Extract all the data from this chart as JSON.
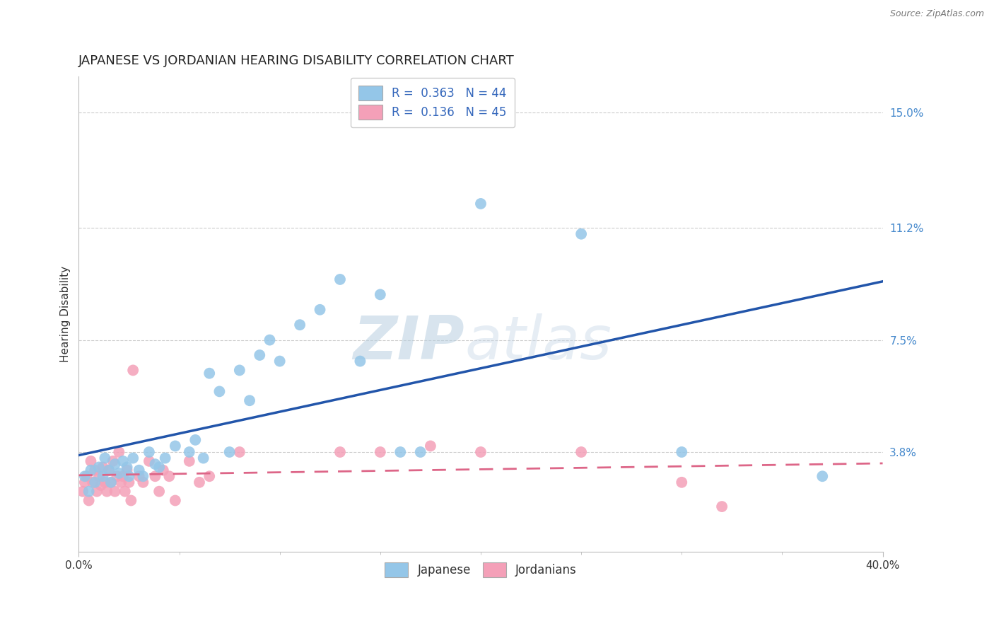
{
  "title": "JAPANESE VS JORDANIAN HEARING DISABILITY CORRELATION CHART",
  "source_text": "Source: ZipAtlas.com",
  "ylabel": "Hearing Disability",
  "x_min": 0.0,
  "x_max": 0.4,
  "y_min": 0.005,
  "y_max": 0.162,
  "y_ticks": [
    0.038,
    0.075,
    0.112,
    0.15
  ],
  "y_tick_labels": [
    "3.8%",
    "7.5%",
    "11.2%",
    "15.0%"
  ],
  "x_ticks": [
    0.0,
    0.4
  ],
  "x_tick_labels": [
    "0.0%",
    "40.0%"
  ],
  "japanese_color": "#94c6e8",
  "jordanian_color": "#f4a0b8",
  "japanese_line_color": "#2255aa",
  "jordanian_line_color": "#dd6688",
  "watermark_zip": "ZIP",
  "watermark_atlas": "atlas",
  "background_color": "#ffffff",
  "grid_color": "#cccccc",
  "japanese_points": [
    [
      0.003,
      0.03
    ],
    [
      0.005,
      0.025
    ],
    [
      0.006,
      0.032
    ],
    [
      0.008,
      0.028
    ],
    [
      0.01,
      0.033
    ],
    [
      0.012,
      0.03
    ],
    [
      0.013,
      0.036
    ],
    [
      0.015,
      0.032
    ],
    [
      0.016,
      0.028
    ],
    [
      0.018,
      0.034
    ],
    [
      0.02,
      0.031
    ],
    [
      0.022,
      0.035
    ],
    [
      0.024,
      0.033
    ],
    [
      0.025,
      0.03
    ],
    [
      0.027,
      0.036
    ],
    [
      0.03,
      0.032
    ],
    [
      0.032,
      0.03
    ],
    [
      0.035,
      0.038
    ],
    [
      0.038,
      0.034
    ],
    [
      0.04,
      0.033
    ],
    [
      0.043,
      0.036
    ],
    [
      0.048,
      0.04
    ],
    [
      0.055,
      0.038
    ],
    [
      0.058,
      0.042
    ],
    [
      0.062,
      0.036
    ],
    [
      0.065,
      0.064
    ],
    [
      0.07,
      0.058
    ],
    [
      0.075,
      0.038
    ],
    [
      0.08,
      0.065
    ],
    [
      0.085,
      0.055
    ],
    [
      0.09,
      0.07
    ],
    [
      0.095,
      0.075
    ],
    [
      0.1,
      0.068
    ],
    [
      0.11,
      0.08
    ],
    [
      0.12,
      0.085
    ],
    [
      0.13,
      0.095
    ],
    [
      0.14,
      0.068
    ],
    [
      0.15,
      0.09
    ],
    [
      0.16,
      0.038
    ],
    [
      0.17,
      0.038
    ],
    [
      0.2,
      0.12
    ],
    [
      0.25,
      0.11
    ],
    [
      0.3,
      0.038
    ],
    [
      0.37,
      0.03
    ]
  ],
  "jordanian_points": [
    [
      0.002,
      0.025
    ],
    [
      0.003,
      0.028
    ],
    [
      0.004,
      0.03
    ],
    [
      0.005,
      0.022
    ],
    [
      0.006,
      0.035
    ],
    [
      0.007,
      0.028
    ],
    [
      0.008,
      0.032
    ],
    [
      0.009,
      0.025
    ],
    [
      0.01,
      0.03
    ],
    [
      0.011,
      0.027
    ],
    [
      0.012,
      0.033
    ],
    [
      0.013,
      0.028
    ],
    [
      0.014,
      0.025
    ],
    [
      0.015,
      0.032
    ],
    [
      0.016,
      0.028
    ],
    [
      0.017,
      0.035
    ],
    [
      0.018,
      0.025
    ],
    [
      0.019,
      0.03
    ],
    [
      0.02,
      0.038
    ],
    [
      0.021,
      0.028
    ],
    [
      0.022,
      0.03
    ],
    [
      0.023,
      0.025
    ],
    [
      0.024,
      0.032
    ],
    [
      0.025,
      0.028
    ],
    [
      0.026,
      0.022
    ],
    [
      0.027,
      0.065
    ],
    [
      0.03,
      0.03
    ],
    [
      0.032,
      0.028
    ],
    [
      0.035,
      0.035
    ],
    [
      0.038,
      0.03
    ],
    [
      0.04,
      0.025
    ],
    [
      0.042,
      0.032
    ],
    [
      0.045,
      0.03
    ],
    [
      0.048,
      0.022
    ],
    [
      0.055,
      0.035
    ],
    [
      0.06,
      0.028
    ],
    [
      0.065,
      0.03
    ],
    [
      0.08,
      0.038
    ],
    [
      0.13,
      0.038
    ],
    [
      0.15,
      0.038
    ],
    [
      0.175,
      0.04
    ],
    [
      0.2,
      0.038
    ],
    [
      0.25,
      0.038
    ],
    [
      0.3,
      0.028
    ],
    [
      0.32,
      0.02
    ]
  ],
  "title_fontsize": 13,
  "axis_label_fontsize": 11,
  "tick_fontsize": 11,
  "legend_fontsize": 12,
  "source_fontsize": 9
}
